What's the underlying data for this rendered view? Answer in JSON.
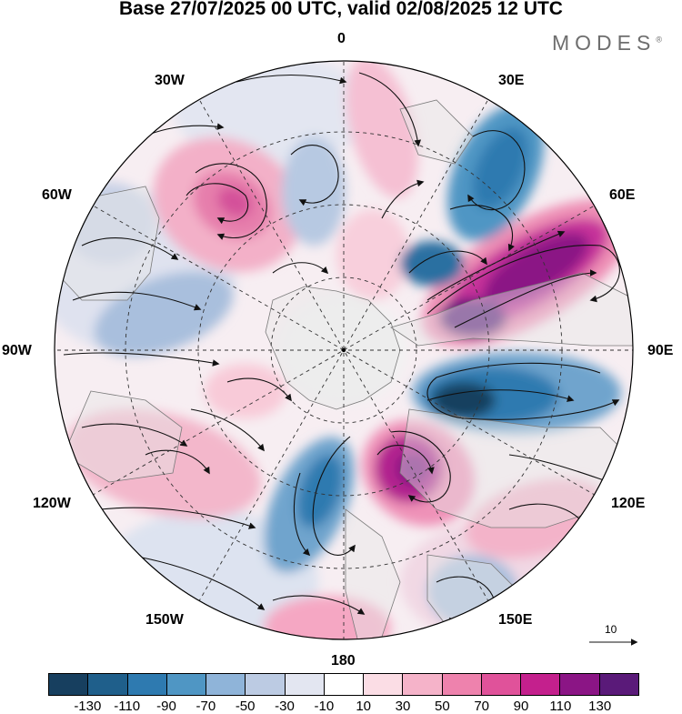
{
  "title": "Base 27/07/2025 00 UTC, valid 02/08/2025 12 UTC",
  "logo": "MODES",
  "logo_mark": "®",
  "longitude_labels": {
    "lon_0": "0",
    "lon_30e": "30E",
    "lon_60e": "60E",
    "lon_90e": "90E",
    "lon_120e": "120E",
    "lon_150e": "150E",
    "lon_180": "180",
    "lon_150w": "150W",
    "lon_120w": "120W",
    "lon_90w": "90W",
    "lon_60w": "60W",
    "lon_30w": "30W"
  },
  "reference_vector": "10",
  "colorbar": {
    "colors": [
      "#173f5f",
      "#1f5f8b",
      "#2e7ab0",
      "#4f96c4",
      "#8fb4d9",
      "#bccbe3",
      "#e3e6f1",
      "#ffffff",
      "#fbdde5",
      "#f5b3c9",
      "#ee82ad",
      "#e0529a",
      "#c4208d",
      "#8b1585",
      "#5a1a79"
    ],
    "ticks": [
      "-130",
      "-110",
      "-90",
      "-70",
      "-50",
      "-30",
      "-10",
      "10",
      "30",
      "50",
      "70",
      "90",
      "110",
      "130"
    ]
  },
  "map_colors": {
    "ocean_bg": "#ffffff",
    "land": "#e6e6e6",
    "coast": "#7a7a7a",
    "grid": "#333333",
    "stream": "#111111"
  }
}
